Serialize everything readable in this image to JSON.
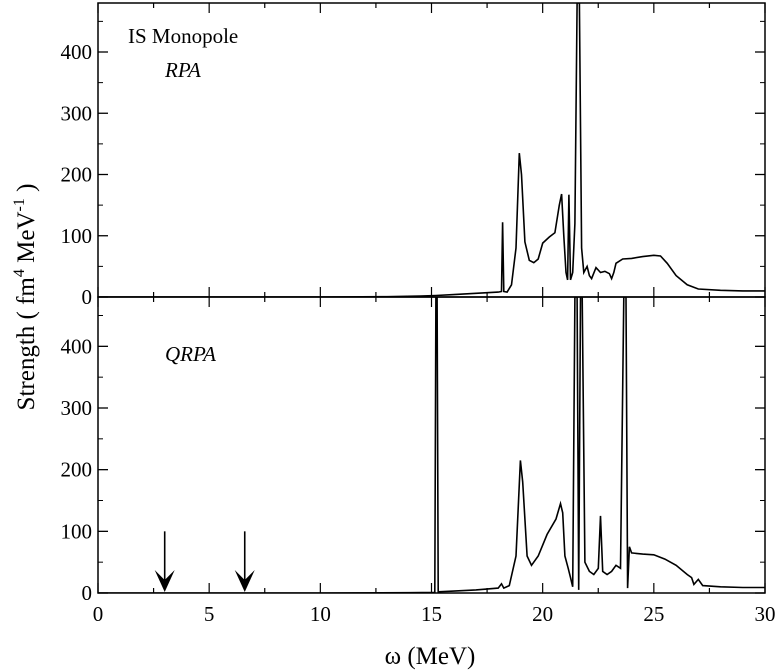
{
  "chart_data": [
    {
      "type": "line",
      "panel": "top",
      "title": "",
      "annotations": [
        "IS Monopole",
        "RPA"
      ],
      "xlabel": "ω  (MeV)",
      "ylabel": "Strength  ( fm^4 MeV^-1 )",
      "xlim": [
        0,
        30
      ],
      "ylim": [
        0,
        480
      ],
      "x_ticks": [
        "0",
        "5",
        "10",
        "15",
        "20",
        "25",
        "30"
      ],
      "y_ticks": [
        "0",
        "100",
        "200",
        "300",
        "400"
      ],
      "grid": false,
      "series": [
        {
          "points": [
            [
              0,
              0
            ],
            [
              10,
              0
            ],
            [
              13,
              0.5
            ],
            [
              14.5,
              1.5
            ],
            [
              15.2,
              2.5
            ],
            [
              16,
              4
            ],
            [
              17,
              6
            ],
            [
              18,
              8
            ],
            [
              18.15,
              9
            ],
            [
              18.2,
              122
            ],
            [
              18.25,
              9
            ],
            [
              18.4,
              8
            ],
            [
              18.6,
              20
            ],
            [
              18.8,
              80
            ],
            [
              18.95,
              235
            ],
            [
              19.05,
              200
            ],
            [
              19.2,
              90
            ],
            [
              19.4,
              60
            ],
            [
              19.6,
              56
            ],
            [
              19.8,
              62
            ],
            [
              20.0,
              88
            ],
            [
              20.3,
              98
            ],
            [
              20.55,
              105
            ],
            [
              20.75,
              150
            ],
            [
              20.85,
              168
            ],
            [
              20.95,
              100
            ],
            [
              21.05,
              40
            ],
            [
              21.12,
              28
            ],
            [
              21.18,
              167
            ],
            [
              21.25,
              28
            ],
            [
              21.35,
              40
            ],
            [
              21.45,
              120
            ],
            [
              21.55,
              480
            ],
            [
              21.65,
              480
            ],
            [
              21.75,
              80
            ],
            [
              21.85,
              40
            ],
            [
              22.0,
              50
            ],
            [
              22.1,
              35
            ],
            [
              22.2,
              30
            ],
            [
              22.4,
              48
            ],
            [
              22.6,
              40
            ],
            [
              22.8,
              42
            ],
            [
              23.0,
              38
            ],
            [
              23.1,
              30
            ],
            [
              23.2,
              40
            ],
            [
              23.3,
              55
            ],
            [
              23.6,
              62
            ],
            [
              24.0,
              63
            ],
            [
              24.5,
              66
            ],
            [
              25.0,
              68
            ],
            [
              25.3,
              67
            ],
            [
              25.6,
              55
            ],
            [
              26.0,
              35
            ],
            [
              26.5,
              20
            ],
            [
              27.0,
              13
            ],
            [
              28.0,
              11
            ],
            [
              29.0,
              10
            ],
            [
              30.0,
              10
            ]
          ]
        }
      ]
    },
    {
      "type": "line",
      "panel": "bottom",
      "title": "",
      "annotations": [
        "QRPA"
      ],
      "xlabel": "ω  (MeV)",
      "ylabel": "Strength  ( fm^4 MeV^-1 )",
      "xlim": [
        0,
        30
      ],
      "ylim": [
        0,
        480
      ],
      "x_ticks": [
        "0",
        "5",
        "10",
        "15",
        "20",
        "25",
        "30"
      ],
      "y_ticks": [
        "0",
        "100",
        "200",
        "300",
        "400"
      ],
      "grid": false,
      "arrows_at_x": [
        3.0,
        6.6
      ],
      "series": [
        {
          "points": [
            [
              0,
              0
            ],
            [
              10,
              0
            ],
            [
              14,
              0.5
            ],
            [
              15.15,
              1
            ],
            [
              15.2,
              480
            ],
            [
              15.25,
              480
            ],
            [
              15.3,
              2
            ],
            [
              16,
              3
            ],
            [
              17,
              5
            ],
            [
              18,
              8
            ],
            [
              18.15,
              15
            ],
            [
              18.25,
              8
            ],
            [
              18.5,
              12
            ],
            [
              18.8,
              60
            ],
            [
              19.0,
              215
            ],
            [
              19.1,
              180
            ],
            [
              19.3,
              60
            ],
            [
              19.5,
              45
            ],
            [
              19.8,
              60
            ],
            [
              20.2,
              95
            ],
            [
              20.6,
              120
            ],
            [
              20.8,
              145
            ],
            [
              20.9,
              130
            ],
            [
              21.0,
              60
            ],
            [
              21.15,
              40
            ],
            [
              21.25,
              25
            ],
            [
              21.35,
              10
            ],
            [
              21.45,
              480
            ],
            [
              21.55,
              480
            ],
            [
              21.62,
              5
            ],
            [
              21.7,
              480
            ],
            [
              21.78,
              480
            ],
            [
              21.9,
              50
            ],
            [
              22.1,
              35
            ],
            [
              22.3,
              30
            ],
            [
              22.5,
              40
            ],
            [
              22.6,
              125
            ],
            [
              22.7,
              35
            ],
            [
              22.9,
              30
            ],
            [
              23.1,
              35
            ],
            [
              23.3,
              45
            ],
            [
              23.5,
              40
            ],
            [
              23.65,
              480
            ],
            [
              23.75,
              480
            ],
            [
              23.82,
              8
            ],
            [
              23.9,
              75
            ],
            [
              24.0,
              65
            ],
            [
              24.5,
              63
            ],
            [
              25.0,
              62
            ],
            [
              25.5,
              55
            ],
            [
              26.0,
              45
            ],
            [
              26.5,
              30
            ],
            [
              26.7,
              25
            ],
            [
              26.8,
              14
            ],
            [
              27.0,
              22
            ],
            [
              27.2,
              12
            ],
            [
              28.0,
              10
            ],
            [
              29.0,
              9
            ],
            [
              30.0,
              9
            ]
          ]
        }
      ]
    }
  ]
}
